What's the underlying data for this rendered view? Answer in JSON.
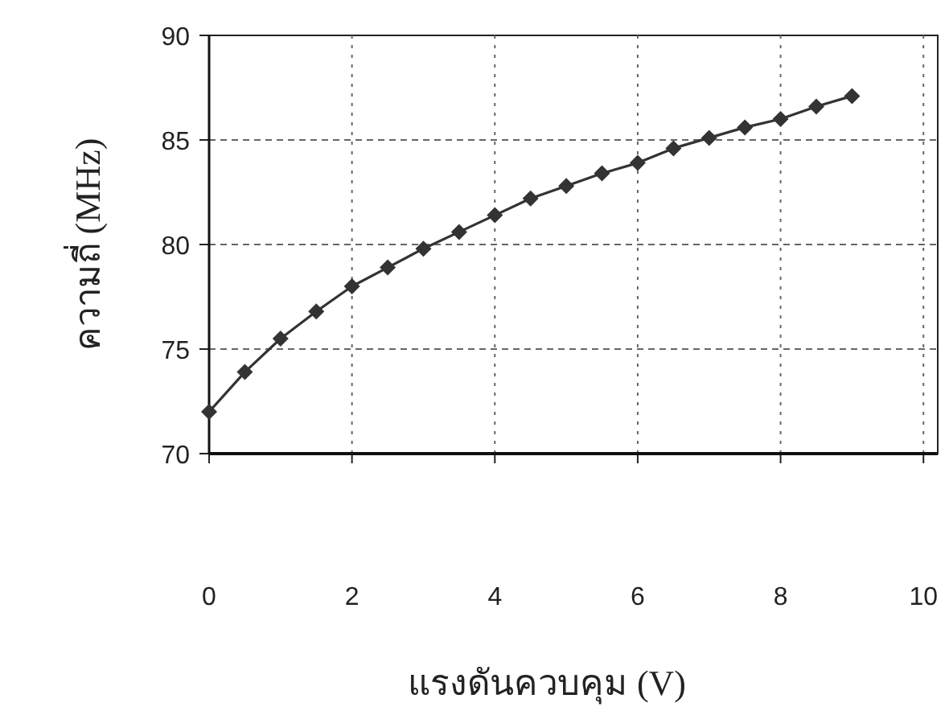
{
  "chart_data": {
    "type": "line",
    "xlabel": "แรงดันควบคุม (V)",
    "ylabel": "ความถี่ (MHz)",
    "x": [
      0,
      0.5,
      1,
      1.5,
      2,
      2.5,
      3,
      3.5,
      4,
      4.5,
      5,
      5.5,
      6,
      6.5,
      7,
      7.5,
      8,
      8.5,
      9
    ],
    "series": [
      {
        "color": "#333333",
        "values": [
          72,
          73.9,
          75.5,
          76.8,
          78,
          78.9,
          79.8,
          80.6,
          81.4,
          82.2,
          82.8,
          83.4,
          83.9,
          84.6,
          85.1,
          85.6,
          86,
          86.6,
          87.1
        ]
      }
    ],
    "xlim": [
      0,
      10.2
    ],
    "xticks": [
      0,
      2,
      4,
      6,
      8,
      10
    ],
    "ylim": [
      70,
      90
    ],
    "yticks": [
      70,
      75,
      80,
      85,
      90
    ],
    "grid": true,
    "marker": "diamond",
    "line_style": "solid"
  }
}
